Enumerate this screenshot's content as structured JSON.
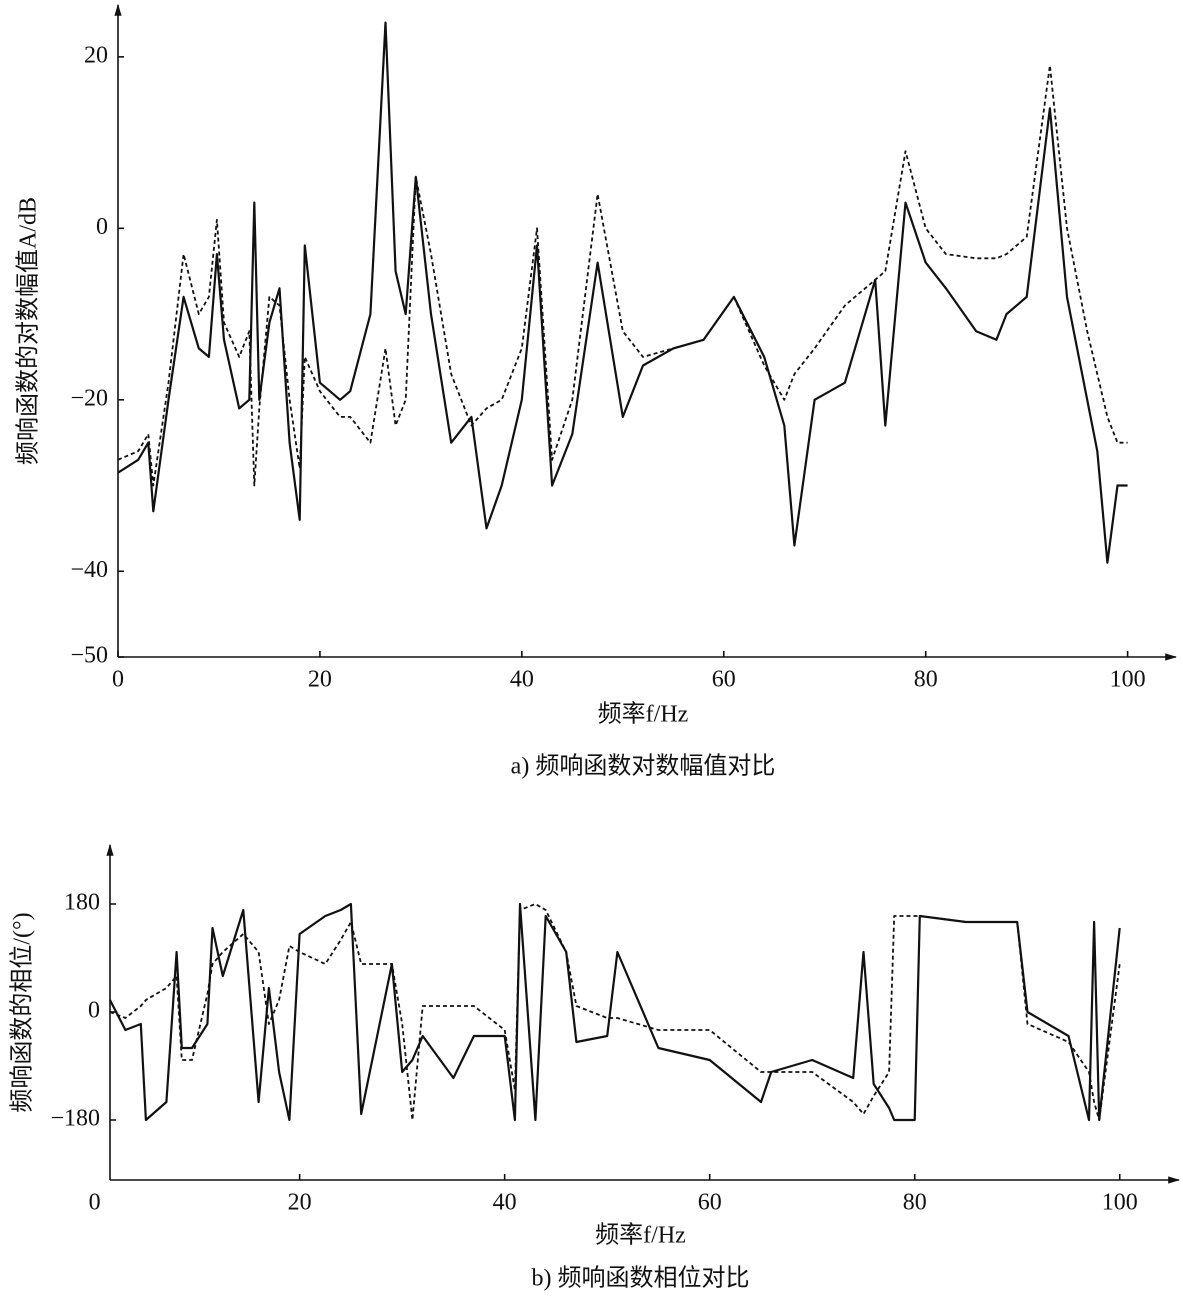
{
  "chart_data": [
    {
      "type": "line",
      "title": "a) 频响函数对数幅值对比",
      "x_label": "频率f/Hz",
      "y_label": "频响函数的对数幅值A/dB",
      "xlim": [
        0,
        104
      ],
      "ylim": [
        -50,
        25
      ],
      "xticks": [
        0,
        20,
        40,
        60,
        80,
        100
      ],
      "yticks": [
        {
          "value": -50,
          "label": "−50"
        },
        {
          "value": -40,
          "label": "−40"
        },
        {
          "value": -20,
          "label": "−20"
        },
        0,
        20
      ],
      "x": [
        0,
        2,
        3,
        3.5,
        5,
        6.5,
        8,
        9,
        9.8,
        10.5,
        12,
        13,
        13.5,
        14,
        15,
        16,
        17,
        18,
        18.5,
        20,
        22,
        23,
        25,
        26.5,
        27.5,
        28.5,
        29.5,
        31,
        33,
        35,
        36.5,
        38,
        40,
        41.5,
        43,
        45,
        47.5,
        50,
        52,
        55,
        58,
        61,
        64,
        66,
        67,
        69,
        72,
        75,
        76,
        78,
        80,
        82,
        85,
        87,
        88,
        90,
        92.3,
        94,
        96,
        97,
        98,
        99,
        100
      ],
      "series": [
        {
          "color": "#111111",
          "linestyle": "solid",
          "values": [
            -28.5,
            -27,
            -25,
            -33,
            -20,
            -8,
            -14,
            -15,
            -3,
            -13,
            -21,
            -20,
            3,
            -20,
            -11,
            -7,
            -25,
            -34,
            -2,
            -18,
            -20,
            -19,
            -10,
            24,
            -5,
            -10,
            6,
            -10,
            -25,
            -22,
            -35,
            -30,
            -20,
            -2,
            -30,
            -24,
            -4,
            -22,
            -16,
            -14,
            -13,
            -8,
            -15,
            -23,
            -37,
            -20,
            -18,
            -6,
            -23,
            3,
            -4,
            -7,
            -12,
            -13,
            -10,
            -8,
            14,
            -8,
            -20,
            -26,
            -39,
            -30,
            -30
          ]
        },
        {
          "color": "#111111",
          "linestyle": "dashed",
          "values": [
            -27,
            -26,
            -24,
            -30,
            -18,
            -3,
            -10,
            -8,
            1,
            -11,
            -15,
            -12,
            -30,
            -21,
            -8,
            -9,
            -20,
            -28,
            -15,
            -19,
            -22,
            -22,
            -25,
            -14,
            -23,
            -20,
            6,
            -3,
            -17,
            -23,
            -21,
            -20,
            -14,
            0,
            -27,
            -20,
            4,
            -12,
            -15,
            -14,
            -13,
            -8,
            -16,
            -20,
            -17,
            -14,
            -9,
            -6,
            -5,
            9,
            0,
            -3,
            -3.5,
            -3.5,
            -3,
            -1,
            19,
            0,
            -12,
            -17,
            -22,
            -25,
            -25
          ]
        }
      ]
    },
    {
      "type": "line",
      "title": "b) 频响函数相位对比",
      "x_label": "频率f/Hz",
      "y_label": "频响函数的相位/(°)",
      "xlim": [
        1.5,
        105
      ],
      "ylim": [
        -280,
        250
      ],
      "xticks": [
        0,
        20,
        40,
        60,
        80,
        100
      ],
      "yticks": [
        {
          "value": -180,
          "label": "−180"
        },
        0,
        180
      ],
      "x": [
        1.5,
        3,
        4.5,
        5,
        7,
        8,
        8.5,
        9.5,
        11,
        11.5,
        12.5,
        14.5,
        16,
        17,
        18,
        19,
        20,
        22.5,
        24,
        25,
        26,
        29,
        30,
        31,
        32,
        35,
        37,
        40,
        41,
        41.5,
        43,
        44,
        46,
        47,
        50,
        51,
        55,
        60,
        65,
        66,
        70,
        74,
        75,
        76,
        77.5,
        78,
        80,
        80.5,
        85,
        90,
        91,
        95,
        97,
        97.5,
        98,
        100
      ],
      "series": [
        {
          "color": "#111111",
          "linestyle": "solid",
          "values": [
            20,
            -30,
            -20,
            -180,
            -150,
            100,
            -60,
            -60,
            -20,
            140,
            60,
            170,
            -150,
            40,
            -100,
            -180,
            130,
            160,
            170,
            180,
            -170,
            80,
            -100,
            -80,
            -40,
            -110,
            -40,
            -40,
            -180,
            180,
            -180,
            160,
            100,
            -50,
            -40,
            100,
            -60,
            -80,
            -150,
            -100,
            -80,
            -110,
            100,
            -120,
            -160,
            -180,
            -180,
            160,
            150,
            150,
            0,
            -40,
            -180,
            150,
            -180,
            140
          ]
        },
        {
          "color": "#111111",
          "linestyle": "dashed",
          "values": [
            0,
            -10,
            10,
            20,
            40,
            60,
            -80,
            -80,
            30,
            80,
            100,
            130,
            100,
            -20,
            20,
            110,
            100,
            80,
            120,
            150,
            80,
            80,
            -20,
            -180,
            10,
            10,
            10,
            -30,
            -130,
            170,
            180,
            170,
            100,
            10,
            -10,
            -10,
            -30,
            -30,
            -100,
            -100,
            -100,
            -150,
            -170,
            -140,
            -100,
            160,
            160,
            160,
            150,
            150,
            -20,
            -50,
            -100,
            -150,
            -180,
            80
          ]
        }
      ]
    }
  ]
}
